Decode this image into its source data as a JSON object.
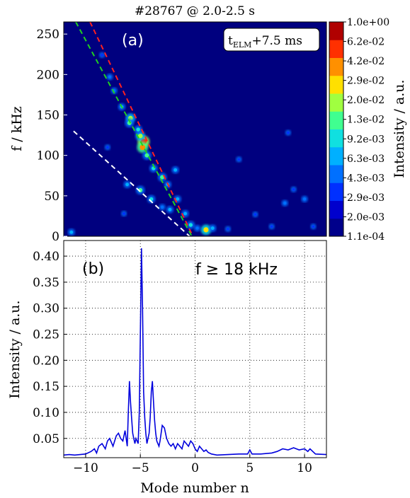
{
  "chart_data": [
    {
      "type": "heatmap",
      "panel_label": "(a)",
      "title": "#28767 @ 2.0-2.5 s",
      "xlim": [
        -12,
        12
      ],
      "ylabel": "f / kHz",
      "ylim": [
        0,
        265
      ],
      "yticks": [
        "0",
        "50",
        "100",
        "150",
        "200",
        "250"
      ],
      "ytick_values": [
        0,
        50,
        100,
        150,
        200,
        250
      ],
      "annotation_main": "t",
      "annotation_sub": "ELM",
      "annotation_tail": "+7.5 ms",
      "colorbar_label": "Intensity / a.u.",
      "colorbar_ticks": [
        "1.1e-04",
        "2.0e-03",
        "2.9e-03",
        "4.3e-03",
        "6.3e-03",
        "9.2e-03",
        "1.3e-02",
        "2.0e-02",
        "2.9e-02",
        "4.2e-02",
        "6.2e-02",
        "1.0e+00"
      ],
      "colorbar_colors": [
        "#00008b",
        "#0000cd",
        "#0030ff",
        "#0070ff",
        "#00b0ff",
        "#10e0e0",
        "#40ff90",
        "#a0ff40",
        "#ffe000",
        "#ff9000",
        "#ff3000",
        "#b00000"
      ],
      "background_color": "#00007f",
      "lines": [
        {
          "color": "#ff2020",
          "style": "dashed",
          "points": [
            [
              -9.6,
              265
            ],
            [
              -0.2,
              0
            ]
          ]
        },
        {
          "color": "#20d020",
          "style": "dashed",
          "points": [
            [
              -10.9,
              265
            ],
            [
              -0.3,
              0
            ]
          ]
        },
        {
          "color": "#ffffff",
          "style": "dashed",
          "points": [
            [
              -11.1,
              130
            ],
            [
              -0.5,
              0
            ]
          ]
        }
      ],
      "hotspots": [
        {
          "x": -4.7,
          "y": 117,
          "level": 10
        },
        {
          "x": -4.8,
          "y": 110,
          "level": 9
        },
        {
          "x": -5.0,
          "y": 124,
          "level": 7
        },
        {
          "x": -5.9,
          "y": 146,
          "level": 7
        },
        {
          "x": -6.0,
          "y": 140,
          "level": 6
        },
        {
          "x": -5.2,
          "y": 132,
          "level": 5
        },
        {
          "x": -4.4,
          "y": 100,
          "level": 6
        },
        {
          "x": -3.8,
          "y": 84,
          "level": 5
        },
        {
          "x": -3.0,
          "y": 73,
          "level": 6
        },
        {
          "x": -2.5,
          "y": 64,
          "level": 4
        },
        {
          "x": -1.6,
          "y": 46,
          "level": 4
        },
        {
          "x": -0.9,
          "y": 28,
          "level": 4
        },
        {
          "x": -0.4,
          "y": 14,
          "level": 5
        },
        {
          "x": -5.0,
          "y": 57,
          "level": 6
        },
        {
          "x": -4.0,
          "y": 46,
          "level": 5
        },
        {
          "x": -6.2,
          "y": 64,
          "level": 4
        },
        {
          "x": -2.3,
          "y": 33,
          "level": 4
        },
        {
          "x": -3.0,
          "y": 36,
          "level": 3
        },
        {
          "x": -1.8,
          "y": 82,
          "level": 4
        },
        {
          "x": -6.7,
          "y": 160,
          "level": 4
        },
        {
          "x": -7.4,
          "y": 180,
          "level": 3
        },
        {
          "x": -7.8,
          "y": 197,
          "level": 3
        },
        {
          "x": -8.5,
          "y": 224,
          "level": 2
        },
        {
          "x": 1.0,
          "y": 8,
          "level": 8
        },
        {
          "x": 1.6,
          "y": 10,
          "level": 4
        },
        {
          "x": -11.3,
          "y": 5,
          "level": 4
        },
        {
          "x": 0.2,
          "y": 10,
          "level": 3
        },
        {
          "x": 8.2,
          "y": 41,
          "level": 3
        },
        {
          "x": 10.0,
          "y": 46,
          "level": 3
        },
        {
          "x": 7.0,
          "y": 12,
          "level": 2
        },
        {
          "x": 9.0,
          "y": 58,
          "level": 2
        },
        {
          "x": 5.5,
          "y": 27,
          "level": 2
        },
        {
          "x": 4.0,
          "y": 95,
          "level": 2
        },
        {
          "x": 8.5,
          "y": 128,
          "level": 2
        },
        {
          "x": 10.8,
          "y": 12,
          "level": 2
        },
        {
          "x": -8.0,
          "y": 110,
          "level": 2
        },
        {
          "x": -6.5,
          "y": 28,
          "level": 2
        },
        {
          "x": 3.0,
          "y": 9,
          "level": 2
        }
      ]
    },
    {
      "type": "line",
      "panel_label": "(b)",
      "annotation": "f ≥ 18 kHz",
      "xlabel": "Mode number n",
      "ylabel": "Intensity / a.u.",
      "xlim": [
        -12,
        12
      ],
      "ylim": [
        0.013,
        0.43
      ],
      "xticks": [
        "−10",
        "−5",
        "0",
        "5",
        "10"
      ],
      "xtick_values": [
        -10,
        -5,
        0,
        5,
        10
      ],
      "yticks": [
        "0.05",
        "0.10",
        "0.15",
        "0.20",
        "0.25",
        "0.30",
        "0.35",
        "0.40"
      ],
      "ytick_values": [
        0.05,
        0.1,
        0.15,
        0.2,
        0.25,
        0.3,
        0.35,
        0.4
      ],
      "grid": true,
      "series": [
        {
          "color": "#0000dd",
          "x": [
            -12.0,
            -11.5,
            -11.0,
            -10.5,
            -10.0,
            -9.5,
            -9.2,
            -9.0,
            -8.8,
            -8.5,
            -8.2,
            -8.0,
            -7.8,
            -7.5,
            -7.2,
            -7.0,
            -6.8,
            -6.6,
            -6.4,
            -6.2,
            -6.1,
            -6.0,
            -5.9,
            -5.8,
            -5.7,
            -5.6,
            -5.5,
            -5.4,
            -5.3,
            -5.2,
            -5.1,
            -5.0,
            -4.9,
            -4.8,
            -4.7,
            -4.6,
            -4.5,
            -4.4,
            -4.3,
            -4.2,
            -4.1,
            -4.0,
            -3.9,
            -3.8,
            -3.7,
            -3.6,
            -3.5,
            -3.4,
            -3.3,
            -3.2,
            -3.0,
            -2.8,
            -2.6,
            -2.4,
            -2.2,
            -2.0,
            -1.8,
            -1.6,
            -1.4,
            -1.2,
            -1.0,
            -0.8,
            -0.6,
            -0.4,
            -0.2,
            0.0,
            0.2,
            0.4,
            0.6,
            0.8,
            1.0,
            1.2,
            1.5,
            2.0,
            3.0,
            4.0,
            4.8,
            5.0,
            5.2,
            6.0,
            7.0,
            7.5,
            8.0,
            8.5,
            9.0,
            9.5,
            10.0,
            10.3,
            10.5,
            11.0,
            12.0
          ],
          "values": [
            0.018,
            0.019,
            0.018,
            0.019,
            0.02,
            0.025,
            0.03,
            0.022,
            0.035,
            0.04,
            0.03,
            0.045,
            0.05,
            0.035,
            0.055,
            0.06,
            0.05,
            0.045,
            0.065,
            0.035,
            0.1,
            0.16,
            0.12,
            0.09,
            0.06,
            0.05,
            0.04,
            0.05,
            0.045,
            0.04,
            0.1,
            0.25,
            0.415,
            0.3,
            0.14,
            0.09,
            0.06,
            0.04,
            0.05,
            0.06,
            0.09,
            0.14,
            0.16,
            0.12,
            0.085,
            0.06,
            0.045,
            0.04,
            0.035,
            0.045,
            0.075,
            0.07,
            0.05,
            0.04,
            0.035,
            0.04,
            0.03,
            0.04,
            0.035,
            0.03,
            0.045,
            0.04,
            0.035,
            0.045,
            0.04,
            0.03,
            0.025,
            0.035,
            0.03,
            0.025,
            0.028,
            0.023,
            0.02,
            0.018,
            0.019,
            0.02,
            0.02,
            0.028,
            0.02,
            0.02,
            0.022,
            0.025,
            0.03,
            0.028,
            0.032,
            0.028,
            0.03,
            0.025,
            0.03,
            0.02,
            0.019
          ]
        }
      ]
    }
  ]
}
